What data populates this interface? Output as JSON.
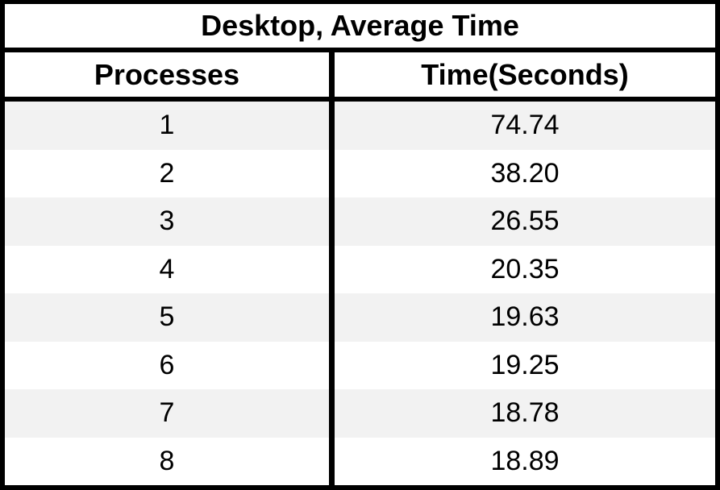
{
  "chart_data": {
    "type": "table",
    "title": "Desktop, Average Time",
    "columns": [
      "Processes",
      "Time(Seconds)"
    ],
    "rows": [
      [
        "1",
        "74.74"
      ],
      [
        "2",
        "38.20"
      ],
      [
        "3",
        "26.55"
      ],
      [
        "4",
        "20.35"
      ],
      [
        "5",
        "19.63"
      ],
      [
        "6",
        "19.25"
      ],
      [
        "7",
        "18.78"
      ],
      [
        "8",
        "18.89"
      ]
    ]
  },
  "colors": {
    "border": "#000000",
    "header_bg": "#ffffff",
    "row_alt_bg": "#f2f2f2",
    "row_bg": "#ffffff",
    "text": "#000000"
  }
}
